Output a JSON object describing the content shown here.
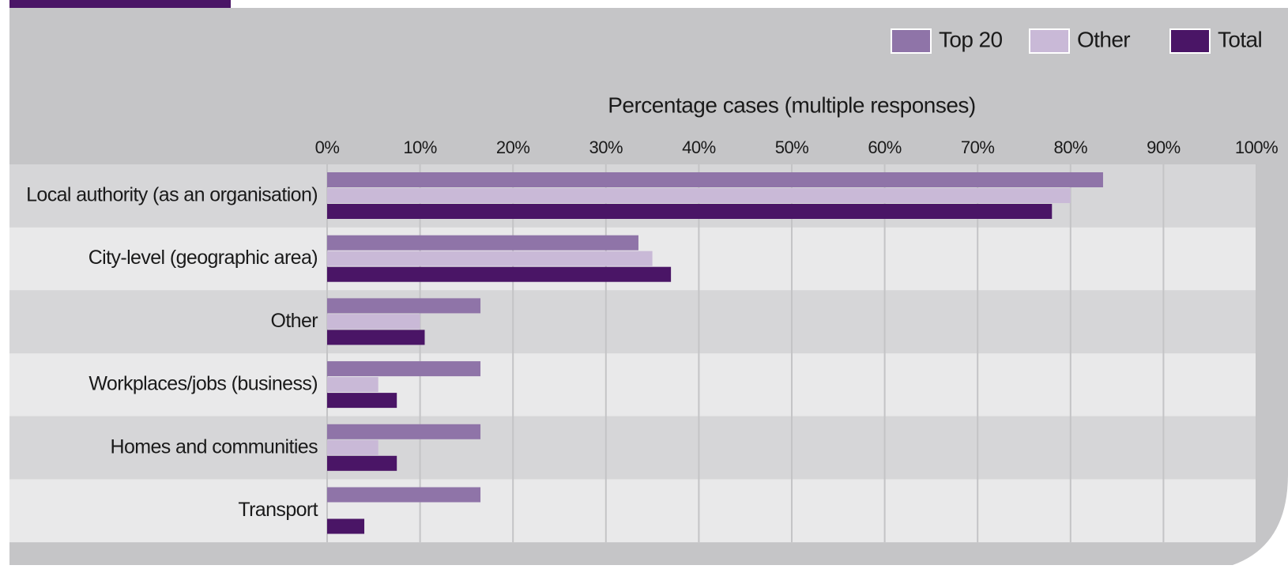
{
  "chart_data": {
    "type": "bar",
    "orientation": "horizontal",
    "x_label": "Percentage cases (multiple responses)",
    "categories": [
      "Local authority (as an organisation)",
      "City-level (geographic area)",
      "Other",
      "Workplaces/jobs (business)",
      "Homes and communities",
      "Transport"
    ],
    "series": [
      {
        "name": "Top 20",
        "color": "#8f74a8",
        "values": [
          83.5,
          33.5,
          16.5,
          16.5,
          16.5,
          16.5
        ]
      },
      {
        "name": "Other",
        "color": "#c9b9d7",
        "values": [
          80,
          35,
          10,
          5.5,
          5.5,
          0
        ]
      },
      {
        "name": "Total",
        "color": "#4a1566",
        "values": [
          78,
          37,
          10.5,
          7.5,
          7.5,
          4
        ]
      }
    ],
    "xlim": [
      0,
      100
    ],
    "xticks": [
      {
        "value": 0,
        "label": "0%"
      },
      {
        "value": 10,
        "label": "10%"
      },
      {
        "value": 20,
        "label": "20%"
      },
      {
        "value": 30,
        "label": "30%"
      },
      {
        "value": 40,
        "label": "40%"
      },
      {
        "value": 50,
        "label": "50%"
      },
      {
        "value": 60,
        "label": "60%"
      },
      {
        "value": 70,
        "label": "70%"
      },
      {
        "value": 80,
        "label": "80%"
      },
      {
        "value": 90,
        "label": "90%"
      },
      {
        "value": 100,
        "label": "100%"
      }
    ],
    "grid": true,
    "legend": "top-right"
  }
}
